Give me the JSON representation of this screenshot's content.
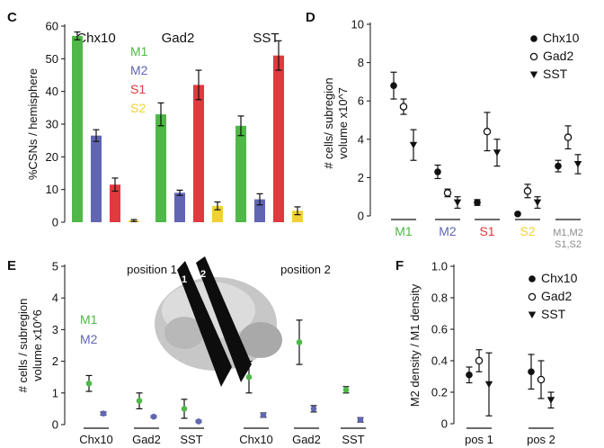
{
  "colors": {
    "M1": "#4fb848",
    "M2": "#6166b3",
    "S1": "#e0393e",
    "S2": "#f0d230",
    "grey": "#8c8c8c",
    "black": "#111111"
  },
  "panel_labels": {
    "C": "C",
    "D": "D",
    "E": "E",
    "F": "F"
  },
  "chart_data": [
    {
      "id": "C",
      "type": "bar",
      "ylabel": "%CSNs / hemisphere",
      "ylim": [
        0,
        60
      ],
      "yticks": [
        0,
        10,
        20,
        30,
        40,
        50,
        60
      ],
      "legend": [
        "M1",
        "M2",
        "S1",
        "S2"
      ],
      "groups": [
        {
          "name": "Chx10",
          "values": [
            57,
            26.5,
            11.5,
            0.5
          ],
          "errors": [
            1.2,
            1.8,
            2,
            0.3
          ]
        },
        {
          "name": "Gad2",
          "values": [
            33,
            9,
            42,
            5
          ],
          "errors": [
            3.5,
            0.8,
            4.5,
            1.2
          ]
        },
        {
          "name": "SST",
          "values": [
            29.5,
            7,
            51,
            3.5
          ],
          "errors": [
            3,
            1.7,
            4.5,
            1.2
          ]
        }
      ]
    },
    {
      "id": "D",
      "type": "scatter",
      "ylabel_lines": [
        "# cells/ subregion",
        "volume x10^7"
      ],
      "ylim": [
        0,
        10
      ],
      "yticks": [
        0,
        2,
        4,
        6,
        8,
        10
      ],
      "legend": [
        "Chx10",
        "Gad2",
        "SST"
      ],
      "groups": [
        {
          "label_lines": [
            "M1"
          ],
          "color_key": "M1",
          "points": [
            {
              "series": "Chx10",
              "value": 6.8,
              "err": 0.7
            },
            {
              "series": "Gad2",
              "value": 5.7,
              "err": 0.4
            },
            {
              "series": "SST",
              "value": 3.7,
              "err": 0.8
            }
          ]
        },
        {
          "label_lines": [
            "M2"
          ],
          "color_key": "M2",
          "points": [
            {
              "series": "Chx10",
              "value": 2.3,
              "err": 0.35
            },
            {
              "series": "Gad2",
              "value": 1.2,
              "err": 0.2
            },
            {
              "series": "SST",
              "value": 0.7,
              "err": 0.3
            }
          ]
        },
        {
          "label_lines": [
            "S1"
          ],
          "color_key": "S1",
          "points": [
            {
              "series": "Chx10",
              "value": 0.7,
              "err": 0.15
            },
            {
              "series": "Gad2",
              "value": 4.4,
              "err": 1.0
            },
            {
              "series": "SST",
              "value": 3.3,
              "err": 0.7
            }
          ]
        },
        {
          "label_lines": [
            "S2"
          ],
          "color_key": "S2",
          "points": [
            {
              "series": "Chx10",
              "value": 0.1,
              "err": 0.05
            },
            {
              "series": "Gad2",
              "value": 1.3,
              "err": 0.35
            },
            {
              "series": "SST",
              "value": 0.7,
              "err": 0.3
            }
          ]
        },
        {
          "label_lines": [
            "M1,M2",
            "S1,S2"
          ],
          "color_key": "grey",
          "points": [
            {
              "series": "Chx10",
              "value": 2.6,
              "err": 0.3
            },
            {
              "series": "Gad2",
              "value": 4.1,
              "err": 0.6
            },
            {
              "series": "SST",
              "value": 2.7,
              "err": 0.5
            }
          ]
        }
      ]
    },
    {
      "id": "E",
      "type": "scatter",
      "ylabel_lines": [
        "# cells / subregion",
        "volume x10^6"
      ],
      "ylim": [
        0,
        5
      ],
      "yticks": [
        0,
        1,
        2,
        3,
        4,
        5
      ],
      "legend": [
        "M1",
        "M2"
      ],
      "annotations": [
        "position 1",
        "position 2",
        "1",
        "2"
      ],
      "groups": [
        {
          "name": "Chx10",
          "position": "position 1",
          "M1": 1.3,
          "M1_err": 0.25,
          "M2": 0.35,
          "M2_err": 0.05
        },
        {
          "name": "Gad2",
          "position": "position 1",
          "M1": 0.75,
          "M1_err": 0.25,
          "M2": 0.25,
          "M2_err": 0.03
        },
        {
          "name": "SST",
          "position": "position 1",
          "M1": 0.5,
          "M1_err": 0.3,
          "M2": 0.1,
          "M2_err": 0.03
        },
        {
          "name": "Chx10",
          "position": "position 2",
          "M1": 1.5,
          "M1_err": 0.5,
          "M2": 0.3,
          "M2_err": 0.07
        },
        {
          "name": "Gad2",
          "position": "position 2",
          "M1": 2.6,
          "M1_err": 0.7,
          "M2": 0.5,
          "M2_err": 0.1
        },
        {
          "name": "SST",
          "position": "position 2",
          "M1": 1.1,
          "M1_err": 0.1,
          "M2": 0.15,
          "M2_err": 0.07
        }
      ]
    },
    {
      "id": "F",
      "type": "scatter",
      "ylabel": "M2 density / M1 density",
      "ylim": [
        0,
        1
      ],
      "yticks": [
        0,
        0.2,
        0.4,
        0.6,
        0.8,
        1.0
      ],
      "ytick_labels": [
        "0",
        "0.2",
        "0.4",
        "0.6",
        "0.8",
        "1.0"
      ],
      "legend": [
        "Chx10",
        "Gad2",
        "SST"
      ],
      "groups": [
        {
          "name": "pos 1",
          "points": [
            {
              "series": "Chx10",
              "value": 0.31,
              "err": 0.05
            },
            {
              "series": "Gad2",
              "value": 0.4,
              "err": 0.07
            },
            {
              "series": "SST",
              "value": 0.25,
              "err": 0.2
            }
          ]
        },
        {
          "name": "pos 2",
          "points": [
            {
              "series": "Chx10",
              "value": 0.33,
              "err": 0.11
            },
            {
              "series": "Gad2",
              "value": 0.28,
              "err": 0.12
            },
            {
              "series": "SST",
              "value": 0.15,
              "err": 0.05
            }
          ]
        }
      ]
    }
  ]
}
